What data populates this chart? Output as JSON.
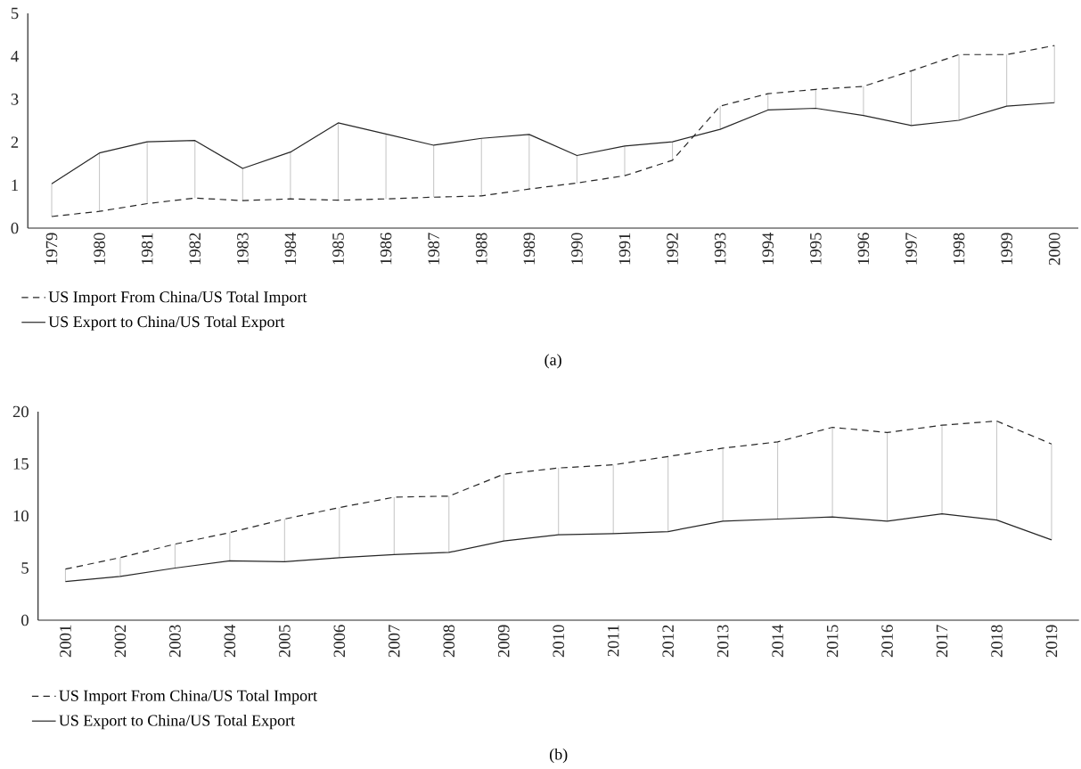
{
  "chart_data": [
    {
      "type": "line",
      "categories": [
        "1979",
        "1980",
        "1981",
        "1982",
        "1983",
        "1984",
        "1985",
        "1986",
        "1987",
        "1988",
        "1989",
        "1990",
        "1991",
        "1992",
        "1993",
        "1994",
        "1995",
        "1996",
        "1997",
        "1998",
        "1999",
        "2000"
      ],
      "series": [
        {
          "name": "US Import From China/US Total Import",
          "color": "#262626",
          "line_style": "dashed",
          "values": [
            0.27,
            0.39,
            0.57,
            0.7,
            0.64,
            0.68,
            0.65,
            0.68,
            0.72,
            0.75,
            0.91,
            1.05,
            1.22,
            1.58,
            2.84,
            3.13,
            3.23,
            3.3,
            3.66,
            4.04,
            4.04,
            4.25
          ],
          "errors": [
            [
              0.27,
              1.03
            ],
            [
              0.39,
              1.75
            ],
            [
              0.57,
              2.01
            ],
            [
              0.7,
              2.04
            ],
            [
              0.64,
              1.39
            ],
            [
              0.68,
              1.77
            ],
            [
              0.65,
              2.45
            ],
            [
              0.68,
              2.19
            ],
            [
              0.72,
              1.93
            ],
            [
              0.75,
              2.09
            ],
            [
              0.91,
              2.18
            ],
            [
              1.05,
              1.69
            ],
            [
              1.22,
              1.91
            ],
            [
              1.58,
              2.01
            ],
            [
              2.3,
              2.84
            ],
            [
              2.75,
              3.13
            ],
            [
              2.79,
              3.23
            ],
            [
              2.62,
              3.3
            ],
            [
              2.39,
              3.66
            ],
            [
              2.51,
              4.04
            ],
            [
              2.84,
              4.04
            ],
            [
              2.92,
              4.25
            ]
          ]
        },
        {
          "name": "US Export to China/US Total Export",
          "color": "#262626",
          "line_style": "solid",
          "values": [
            1.03,
            1.75,
            2.01,
            2.04,
            1.39,
            1.77,
            2.45,
            2.19,
            1.93,
            2.09,
            2.18,
            1.69,
            1.91,
            2.01,
            2.3,
            2.75,
            2.79,
            2.62,
            2.39,
            2.51,
            2.84,
            2.92
          ]
        }
      ],
      "ylim": [
        0,
        5
      ],
      "yticks": [
        0,
        1,
        2,
        3,
        4,
        5
      ],
      "legend": "bottom",
      "annotations": [
        "(a)"
      ]
    },
    {
      "type": "line",
      "categories": [
        "2001",
        "2002",
        "2003",
        "2004",
        "2005",
        "2006",
        "2007",
        "2008",
        "2009",
        "2010",
        "2011",
        "2012",
        "2013",
        "2014",
        "2015",
        "2016",
        "2017",
        "2018",
        "2019"
      ],
      "series": [
        {
          "name": "US Import From China/US Total Import",
          "color": "#262626",
          "line_style": "dashed",
          "values": [
            4.9,
            6.0,
            7.3,
            8.4,
            9.7,
            10.8,
            11.8,
            11.9,
            14.0,
            14.6,
            14.9,
            15.7,
            16.5,
            17.1,
            18.5,
            18.0,
            18.7,
            19.1,
            16.9
          ],
          "errors": [
            [
              3.7,
              4.9
            ],
            [
              4.2,
              6.0
            ],
            [
              5.0,
              7.3
            ],
            [
              5.7,
              8.4
            ],
            [
              5.6,
              9.7
            ],
            [
              6.0,
              10.8
            ],
            [
              6.3,
              11.8
            ],
            [
              6.5,
              11.9
            ],
            [
              7.6,
              14.0
            ],
            [
              8.2,
              14.6
            ],
            [
              8.3,
              14.9
            ],
            [
              8.5,
              15.7
            ],
            [
              9.5,
              16.5
            ],
            [
              9.7,
              17.1
            ],
            [
              9.9,
              18.5
            ],
            [
              9.5,
              18.0
            ],
            [
              10.2,
              18.7
            ],
            [
              9.6,
              19.1
            ],
            [
              7.7,
              16.9
            ]
          ]
        },
        {
          "name": "US Export to China/US Total Export",
          "color": "#262626",
          "line_style": "solid",
          "values": [
            3.7,
            4.2,
            5.0,
            5.7,
            5.6,
            6.0,
            6.3,
            6.5,
            7.6,
            8.2,
            8.3,
            8.5,
            9.5,
            9.7,
            9.9,
            9.5,
            10.2,
            9.6,
            7.7
          ]
        }
      ],
      "ylim": [
        0,
        20
      ],
      "yticks": [
        0,
        5,
        10,
        15,
        20
      ],
      "legend": "bottom",
      "annotations": [
        "(b)"
      ]
    }
  ]
}
